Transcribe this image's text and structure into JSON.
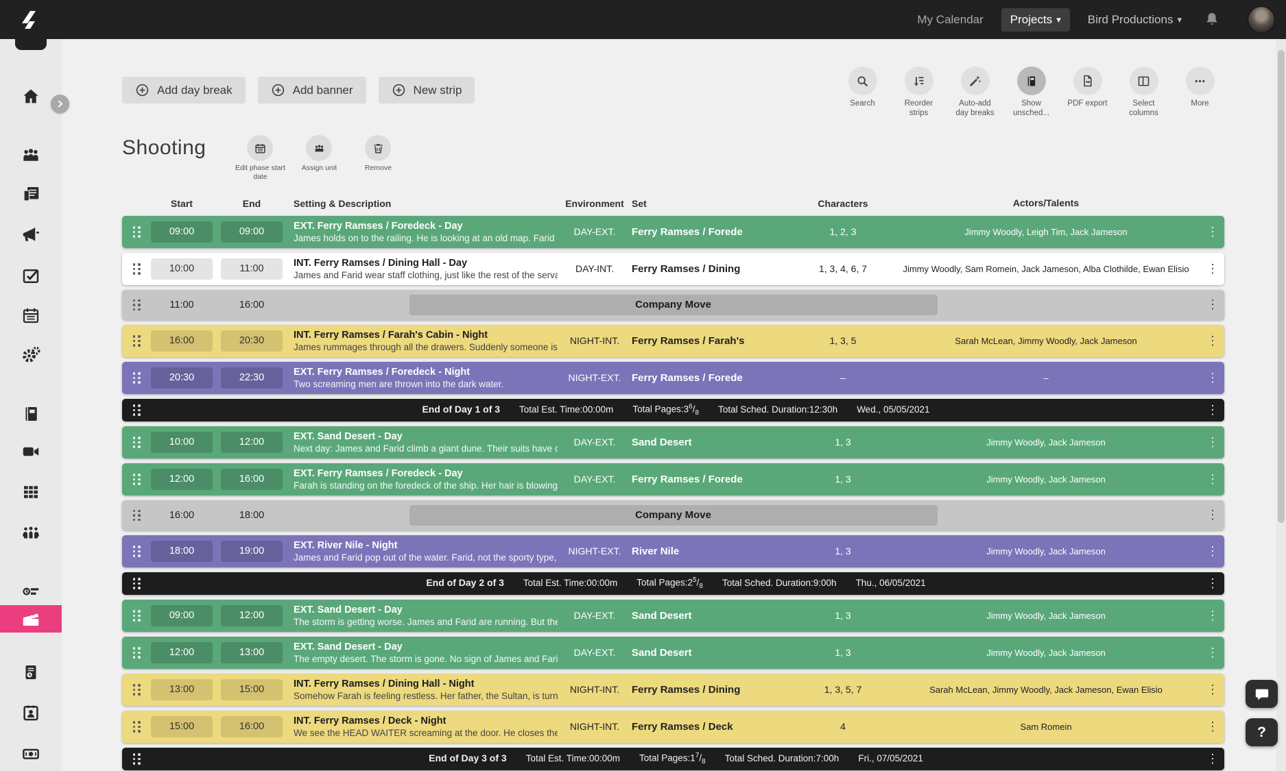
{
  "topbar": {
    "nav_my_calendar": "My Calendar",
    "nav_projects": "Projects",
    "nav_org": "Bird Productions",
    "caret": "▾"
  },
  "toolbar": {
    "add_day_break": "Add day break",
    "add_banner": "Add banner",
    "new_strip": "New strip",
    "tools": [
      {
        "icon": "search-icon",
        "label": "Search"
      },
      {
        "icon": "reorder-strips-icon",
        "label": "Reorder strips"
      },
      {
        "icon": "auto-add-day-breaks-icon",
        "label": "Auto-add day breaks"
      },
      {
        "icon": "show-unscheduled-icon",
        "label": "Show unsched...",
        "active": true
      },
      {
        "icon": "pdf-export-icon",
        "label": "PDF export"
      },
      {
        "icon": "select-columns-icon",
        "label": "Select columns"
      },
      {
        "icon": "more-icon",
        "label": "More"
      }
    ]
  },
  "phase": {
    "title": "Shooting",
    "actions": [
      {
        "icon": "calendar-icon",
        "label": "Edit phase start date"
      },
      {
        "icon": "assign-unit-icon",
        "label": "Assign unit"
      },
      {
        "icon": "trash-icon",
        "label": "Remove"
      }
    ]
  },
  "columns": {
    "start": "Start",
    "end": "End",
    "setting": "Setting & Description",
    "environment": "Environment",
    "set": "Set",
    "characters": "Characters",
    "actors": "Actors/Talents"
  },
  "sidebar": {
    "items": [
      {
        "icon": "home-icon"
      },
      {
        "icon": "cast-icon"
      },
      {
        "icon": "script-icon"
      },
      {
        "icon": "announcements-icon"
      },
      {
        "icon": "tasks-icon"
      },
      {
        "icon": "calendar-icon"
      },
      {
        "icon": "settings-icon"
      },
      {
        "icon": "notebook-icon"
      },
      {
        "icon": "video-icon"
      },
      {
        "icon": "storyboard-icon"
      },
      {
        "icon": "crew-icon"
      },
      {
        "icon": "timeline-icon"
      },
      {
        "icon": "shooting-schedule-icon",
        "active": true
      },
      {
        "icon": "call-sheet-icon"
      },
      {
        "icon": "contacts-icon"
      },
      {
        "icon": "budget-icon"
      }
    ]
  },
  "colors": {
    "green": "#5AA87A",
    "white": "#FFFFFF",
    "yellow": "#EDD97E",
    "purple": "#7B74B9",
    "move_gray": "#C6C6C6",
    "dayend_black": "#1D1D1D",
    "accent_pink": "#EA3E7F",
    "topbar": "#212121"
  },
  "strips": [
    {
      "type": "scene",
      "color": "green",
      "start": "09:00",
      "end": "09:00",
      "title": "EXT. Ferry Ramses / Foredeck - Day",
      "description": "James holds on to the railing. He is looking at an old map. Farid",
      "environment": "DAY-EXT.",
      "set": "Ferry Ramses / Forede",
      "characters": "1, 2, 3",
      "actors": "Jimmy Woodly, Leigh Tim, Jack Jameson"
    },
    {
      "type": "scene",
      "color": "white",
      "start": "10:00",
      "end": "11:00",
      "title": "INT. Ferry Ramses / Dining Hall - Day",
      "description": "James and Farid wear staff clothing, just like the rest of the serva",
      "environment": "DAY-INT.",
      "set": "Ferry Ramses / Dining",
      "characters": "1, 3, 4, 6, 7",
      "actors": "Jimmy Woodly, Sam Romein, Jack Jameson, Alba Clothilde, Ewan Elisio"
    },
    {
      "type": "move",
      "start": "11:00",
      "end": "16:00",
      "label": "Company Move"
    },
    {
      "type": "scene",
      "color": "yellow",
      "start": "16:00",
      "end": "20:30",
      "title": "INT. Ferry Ramses / Farah's Cabin - Night",
      "description": "James rummages through all the drawers. Suddenly someone is",
      "environment": "NIGHT-INT.",
      "set": "Ferry Ramses / Farah's",
      "characters": "1, 3, 5",
      "actors": "Sarah McLean, Jimmy Woodly, Jack Jameson"
    },
    {
      "type": "scene",
      "color": "purple",
      "start": "20:30",
      "end": "22:30",
      "title": "EXT. Ferry Ramses / Foredeck - Night",
      "description": "Two screaming men are thrown into the dark water.",
      "environment": "NIGHT-EXT.",
      "set": "Ferry Ramses / Forede",
      "characters": "–",
      "actors": "–"
    },
    {
      "type": "dayend",
      "label": "End of Day 1 of 3",
      "est_label": "Total Est. Time:",
      "est": "00:00m",
      "pages_label": "Total Pages:",
      "pages_whole": "3",
      "pages_num": "6",
      "pages_den": "8",
      "sched_label": "Total Sched. Duration:",
      "sched": "12:30h",
      "date": "Wed., 05/05/2021"
    },
    {
      "type": "scene",
      "color": "green",
      "start": "10:00",
      "end": "12:00",
      "title": "EXT. Sand Desert - Day",
      "description": "Next day: James and Farid climb a giant dune. Their suits have c",
      "environment": "DAY-EXT.",
      "set": "Sand Desert",
      "characters": "1, 3",
      "actors": "Jimmy Woodly, Jack Jameson"
    },
    {
      "type": "scene",
      "color": "green",
      "start": "12:00",
      "end": "16:00",
      "title": "EXT. Ferry Ramses / Foredeck - Day",
      "description": "Farah is standing on the foredeck of the ship. Her hair is blowing",
      "environment": "DAY-EXT.",
      "set": "Ferry Ramses / Forede",
      "characters": "1, 3",
      "actors": "Jimmy Woodly, Jack Jameson"
    },
    {
      "type": "move",
      "start": "16:00",
      "end": "18:00",
      "label": "Company Move"
    },
    {
      "type": "scene",
      "color": "purple",
      "start": "18:00",
      "end": "19:00",
      "title": "EXT. River Nile - Night",
      "description": "James and Farid pop out of the water. Farid, not the sporty type,",
      "environment": "NIGHT-EXT.",
      "set": "River Nile",
      "characters": "1, 3",
      "actors": "Jimmy Woodly, Jack Jameson"
    },
    {
      "type": "dayend",
      "label": "End of Day 2 of 3",
      "est_label": "Total Est. Time:",
      "est": "00:00m",
      "pages_label": "Total Pages:",
      "pages_whole": "2",
      "pages_num": "5",
      "pages_den": "8",
      "sched_label": "Total Sched. Duration:",
      "sched": "9:00h",
      "date": "Thu., 06/05/2021"
    },
    {
      "type": "scene",
      "color": "green",
      "start": "09:00",
      "end": "12:00",
      "title": "EXT. Sand Desert - Day",
      "description": "The storm is getting worse. James and Farid are running. But the",
      "environment": "DAY-EXT.",
      "set": "Sand Desert",
      "characters": "1, 3",
      "actors": "Jimmy Woodly, Jack Jameson"
    },
    {
      "type": "scene",
      "color": "green",
      "start": "12:00",
      "end": "13:00",
      "title": "EXT. Sand Desert - Day",
      "description": "The empty desert. The storm is gone. No sign of James and Fari",
      "environment": "DAY-EXT.",
      "set": "Sand Desert",
      "characters": "1, 3",
      "actors": "Jimmy Woodly, Jack Jameson"
    },
    {
      "type": "scene",
      "color": "yellow",
      "start": "13:00",
      "end": "15:00",
      "title": "INT. Ferry Ramses / Dining Hall - Night",
      "description": "Somehow Farah is feeling restless. Her father, the Sultan, is turn",
      "environment": "NIGHT-INT.",
      "set": "Ferry Ramses / Dining",
      "characters": "1, 3, 5, 7",
      "actors": "Sarah McLean, Jimmy Woodly, Jack Jameson, Ewan Elisio"
    },
    {
      "type": "scene",
      "color": "yellow",
      "start": "15:00",
      "end": "16:00",
      "title": "INT. Ferry Ramses / Deck - Night",
      "description": "We see the HEAD WAITER screaming at the door. He closes the",
      "environment": "NIGHT-INT.",
      "set": "Ferry Ramses / Deck",
      "characters": "4",
      "actors": "Sam Romein"
    },
    {
      "type": "dayend",
      "label": "End of Day 3 of 3",
      "est_label": "Total Est. Time:",
      "est": "00:00m",
      "pages_label": "Total Pages:",
      "pages_whole": "1",
      "pages_num": "7",
      "pages_den": "8",
      "sched_label": "Total Sched. Duration:",
      "sched": "7:00h",
      "date": "Fri., 07/05/2021"
    }
  ],
  "floating": {
    "help": "?"
  }
}
